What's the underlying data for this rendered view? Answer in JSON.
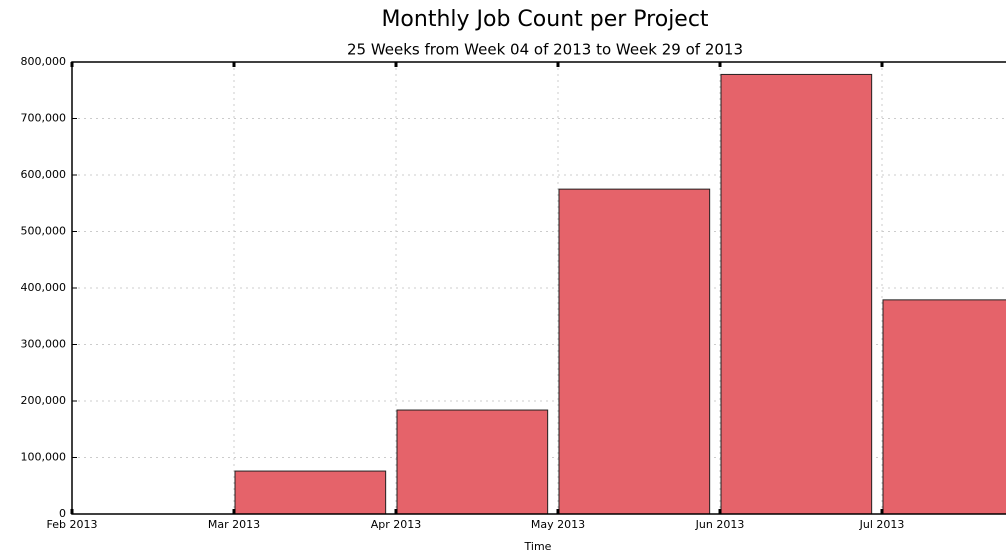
{
  "chart_data": {
    "type": "bar",
    "title": "Monthly Job Count per Project",
    "subtitle": "25 Weeks from Week 04 of 2013 to Week 29 of 2013",
    "x_label": "Time",
    "categories": [
      "Feb 2013",
      "Mar 2013",
      "Apr 2013",
      "May 2013",
      "Jun 2013",
      "Jul 2013"
    ],
    "values": [
      0,
      76000,
      184000,
      575000,
      778000,
      379000
    ],
    "color": "#e5636a",
    "ylim": [
      0,
      800000
    ],
    "yticks": [
      {
        "value": 0,
        "label": "0"
      },
      {
        "value": 100000,
        "label": "100,000"
      },
      {
        "value": 200000,
        "label": "200,000"
      },
      {
        "value": 300000,
        "label": "300,000"
      },
      {
        "value": 400000,
        "label": "400,000"
      },
      {
        "value": 500000,
        "label": "500,000"
      },
      {
        "value": 600000,
        "label": "600,000"
      },
      {
        "value": 700000,
        "label": "700,000"
      },
      {
        "value": 800000,
        "label": "800,000"
      }
    ],
    "grid": true
  }
}
